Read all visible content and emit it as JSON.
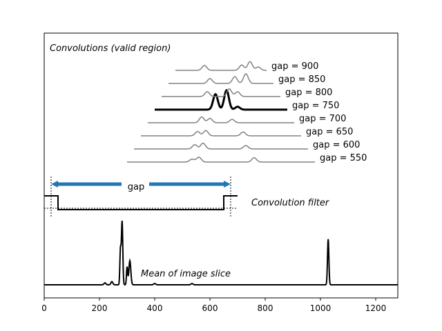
{
  "chart_data": {
    "type": "line",
    "xlim": [
      0,
      1280
    ],
    "x_ticks": [
      0,
      200,
      400,
      600,
      800,
      1000,
      1200
    ],
    "x_tick_labels": [
      "0",
      "200",
      "400",
      "600",
      "800",
      "1000",
      "1200"
    ],
    "grid": false,
    "panel_title": "Convolutions (valid region)",
    "filter_label": "Convolution filter",
    "mean_label": "Mean of image slice",
    "gap_label": "gap",
    "highlight_gap": "gap = 750",
    "colors": {
      "highlight": "#000000",
      "other": "#808080",
      "arrow": "#1f77b4"
    },
    "filter": {
      "start_x": 25,
      "end_x": 675,
      "step_in_x": 50,
      "step_out_x": 650,
      "extends_to_x": 700
    },
    "mean_peaks": [
      {
        "x": 220,
        "h": 0.03
      },
      {
        "x": 245,
        "h": 0.05
      },
      {
        "x": 282,
        "h": 1.0
      },
      {
        "x": 310,
        "h": 0.38
      },
      {
        "x": 400,
        "h": 0.02
      },
      {
        "x": 535,
        "h": 0.02
      },
      {
        "x": 1028,
        "h": 0.72
      }
    ],
    "series": [
      {
        "label": "gap = 550",
        "x_start": 300,
        "x_end": 980,
        "peaks": [
          {
            "x": 535,
            "h": 0.3
          },
          {
            "x": 560,
            "h": 0.5
          },
          {
            "x": 760,
            "h": 0.45
          }
        ]
      },
      {
        "label": "gap = 600",
        "x_start": 325,
        "x_end": 955,
        "peaks": [
          {
            "x": 545,
            "h": 0.45
          },
          {
            "x": 575,
            "h": 0.6
          },
          {
            "x": 730,
            "h": 0.35
          }
        ]
      },
      {
        "label": "gap = 650",
        "x_start": 350,
        "x_end": 930,
        "peaks": [
          {
            "x": 555,
            "h": 0.45
          },
          {
            "x": 585,
            "h": 0.55
          },
          {
            "x": 720,
            "h": 0.4
          }
        ]
      },
      {
        "label": "gap = 700",
        "x_start": 375,
        "x_end": 905,
        "peaks": [
          {
            "x": 570,
            "h": 0.6
          },
          {
            "x": 600,
            "h": 0.45
          },
          {
            "x": 680,
            "h": 0.35
          }
        ]
      },
      {
        "label": "gap = 750",
        "x_start": 400,
        "x_end": 880,
        "peaks": [
          {
            "x": 620,
            "h": 1.6
          },
          {
            "x": 660,
            "h": 2.0
          },
          {
            "x": 700,
            "h": 0.3
          }
        ]
      },
      {
        "label": "gap = 800",
        "x_start": 425,
        "x_end": 855,
        "peaks": [
          {
            "x": 590,
            "h": 0.5
          },
          {
            "x": 670,
            "h": 0.8
          },
          {
            "x": 700,
            "h": 0.5
          }
        ]
      },
      {
        "label": "gap = 850",
        "x_start": 450,
        "x_end": 830,
        "peaks": [
          {
            "x": 600,
            "h": 0.5
          },
          {
            "x": 690,
            "h": 0.7
          },
          {
            "x": 730,
            "h": 1.0
          }
        ]
      },
      {
        "label": "gap = 900",
        "x_start": 475,
        "x_end": 805,
        "peaks": [
          {
            "x": 580,
            "h": 0.5
          },
          {
            "x": 715,
            "h": 0.55
          },
          {
            "x": 745,
            "h": 0.9
          },
          {
            "x": 775,
            "h": 0.35
          }
        ]
      }
    ]
  }
}
